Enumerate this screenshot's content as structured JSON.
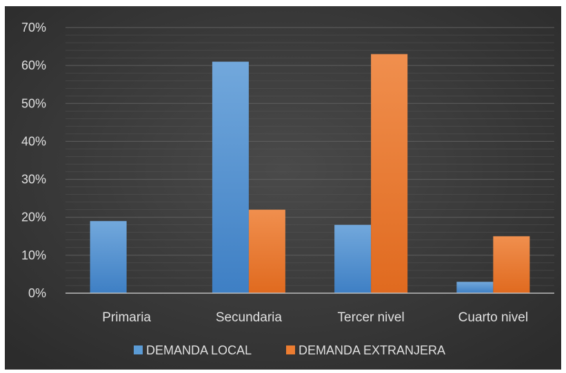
{
  "chart_data": {
    "type": "bar",
    "title": "",
    "xlabel": "",
    "ylabel": "",
    "categories": [
      "Primaria",
      "Secundaria",
      "Tercer nivel",
      "Cuarto nivel"
    ],
    "series": [
      {
        "name": "DEMANDA LOCAL",
        "values": [
          0.19,
          0.61,
          0.18,
          0.03
        ],
        "color": "#5b9bd5"
      },
      {
        "name": "DEMANDA EXTRANJERA",
        "values": [
          0,
          0.22,
          0.63,
          0.15
        ],
        "color": "#ed7d31"
      }
    ],
    "ylim": [
      0,
      0.7
    ],
    "yticks": [
      0,
      0.1,
      0.2,
      0.3,
      0.4,
      0.5,
      0.6,
      0.7
    ],
    "ytick_labels": [
      "0%",
      "10%",
      "20%",
      "30%",
      "40%",
      "50%",
      "60%",
      "70%"
    ],
    "grid": true,
    "legend": "bottom-center",
    "background_color": "#3a3a3a",
    "text_color": "#e0e0e0"
  }
}
